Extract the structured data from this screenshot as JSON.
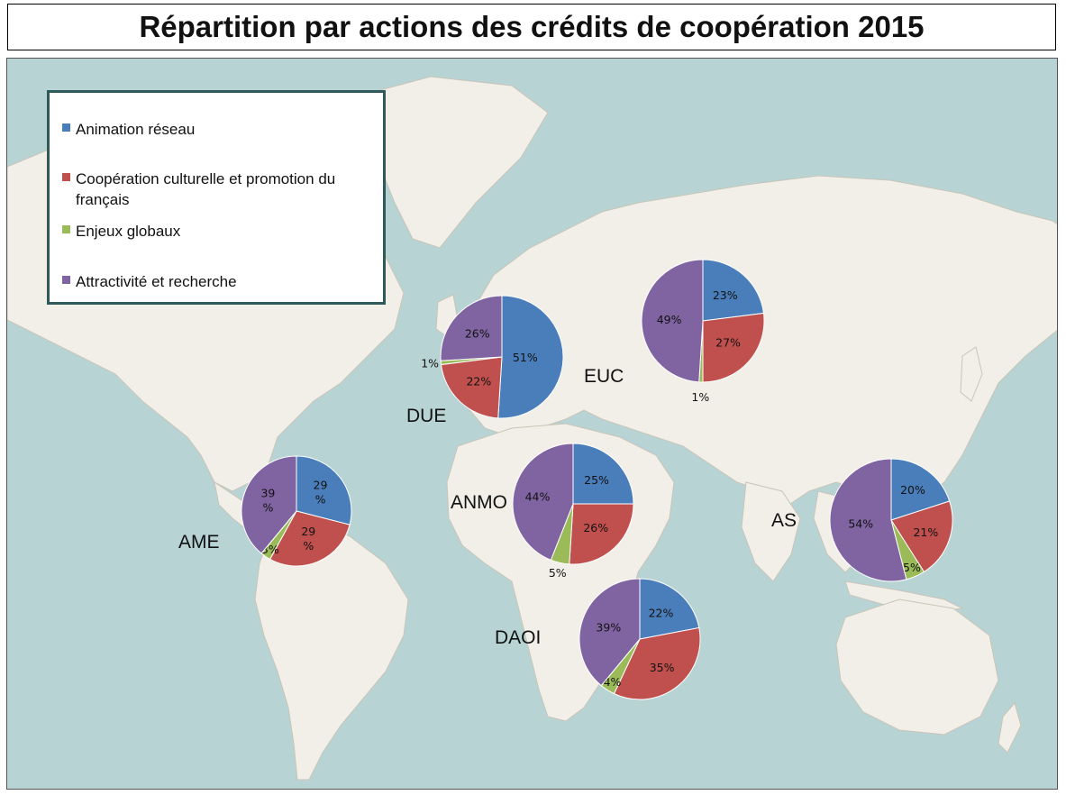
{
  "title": "Répartition par actions des crédits de coopération 2015",
  "legend": {
    "items": [
      {
        "label": "Animation réseau",
        "color": "#4a7ebb"
      },
      {
        "label": "Coopération culturelle et promotion du français",
        "color": "#c0504d"
      },
      {
        "label": "Enjeux globaux",
        "color": "#9bbb59"
      },
      {
        "label": "Attractivité et recherche",
        "color": "#8064a2"
      }
    ]
  },
  "colors": {
    "ocean": "#b7d3d3",
    "land": "#f1efe7",
    "border": "#c9c5b9"
  },
  "chart_data": [
    {
      "type": "pie",
      "region": "DUE",
      "categories": [
        "Animation réseau",
        "Coopération culturelle et promotion du français",
        "Enjeux globaux",
        "Attractivité et recherche"
      ],
      "values": [
        51,
        22,
        1,
        26
      ],
      "labels": [
        "51%",
        "22%",
        "1%",
        "26%"
      ]
    },
    {
      "type": "pie",
      "region": "EUC",
      "categories": [
        "Animation réseau",
        "Coopération culturelle et promotion du français",
        "Enjeux globaux",
        "Attractivité et recherche"
      ],
      "values": [
        23,
        27,
        1,
        49
      ],
      "labels": [
        "23%",
        "27%",
        "1%",
        "49%"
      ]
    },
    {
      "type": "pie",
      "region": "AME",
      "categories": [
        "Animation réseau",
        "Coopération culturelle et promotion du français",
        "Enjeux globaux",
        "Attractivité et recherche"
      ],
      "values": [
        29,
        29,
        3,
        39
      ],
      "labels": [
        "29 %",
        "29 %",
        "3%",
        "39 %"
      ]
    },
    {
      "type": "pie",
      "region": "ANMO",
      "categories": [
        "Animation réseau",
        "Coopération culturelle et promotion du français",
        "Enjeux globaux",
        "Attractivité et recherche"
      ],
      "values": [
        25,
        26,
        5,
        44
      ],
      "labels": [
        "25%",
        "26%",
        "5%",
        "44%"
      ]
    },
    {
      "type": "pie",
      "region": "AS",
      "categories": [
        "Animation réseau",
        "Coopération culturelle et promotion du français",
        "Enjeux globaux",
        "Attractivité et recherche"
      ],
      "values": [
        20,
        21,
        5,
        54
      ],
      "labels": [
        "20%",
        "21%",
        "5%",
        "54%"
      ]
    },
    {
      "type": "pie",
      "region": "DAOI",
      "categories": [
        "Animation réseau",
        "Coopération culturelle et promotion du français",
        "Enjeux globaux",
        "Attractivité et recherche"
      ],
      "values": [
        22,
        35,
        4,
        39
      ],
      "labels": [
        "22%",
        "35%",
        "4%",
        "39%"
      ]
    }
  ]
}
